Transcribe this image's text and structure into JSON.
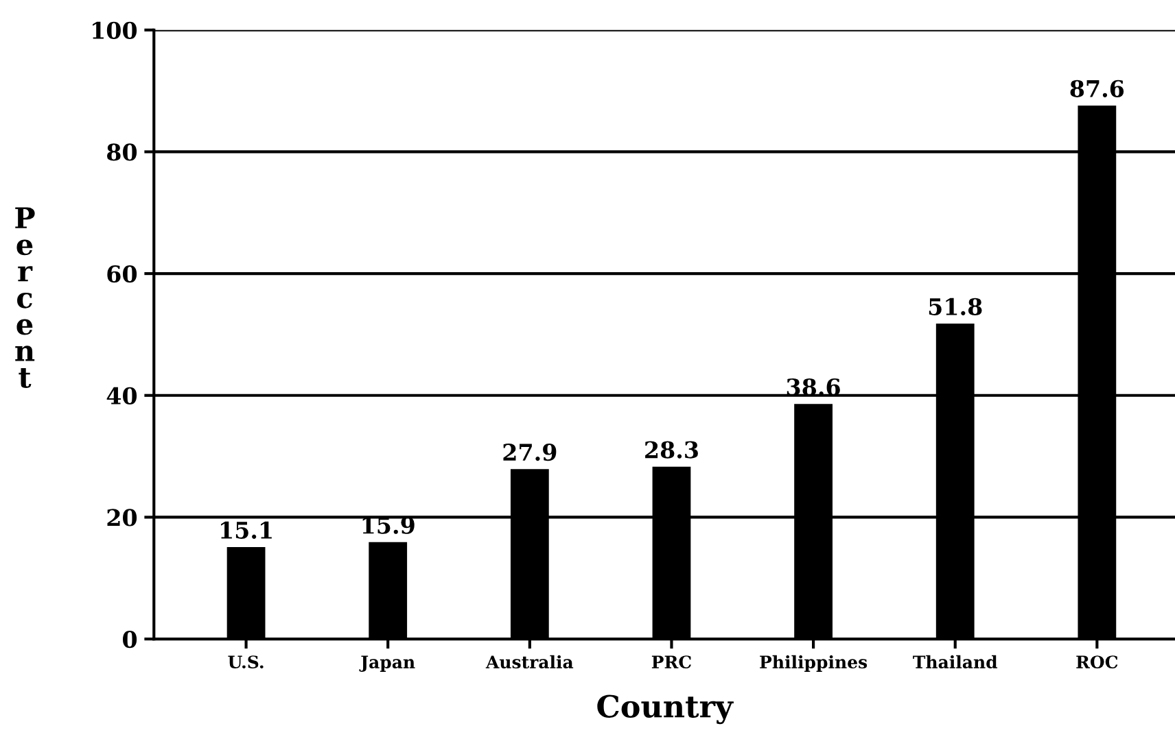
{
  "chart_data": {
    "type": "bar",
    "xlabel": "Country",
    "ylabel": "Percent",
    "categories": [
      "U.S.",
      "Japan",
      "Australia",
      "PRC",
      "Philippines",
      "Thailand",
      "ROC"
    ],
    "values": [
      15.1,
      15.9,
      27.9,
      28.3,
      38.6,
      51.8,
      87.6
    ],
    "color": "#000000",
    "ylim": [
      0,
      100
    ],
    "yticks": [
      0,
      20,
      40,
      60,
      80,
      100
    ],
    "grid": "y",
    "data_labels": true
  }
}
